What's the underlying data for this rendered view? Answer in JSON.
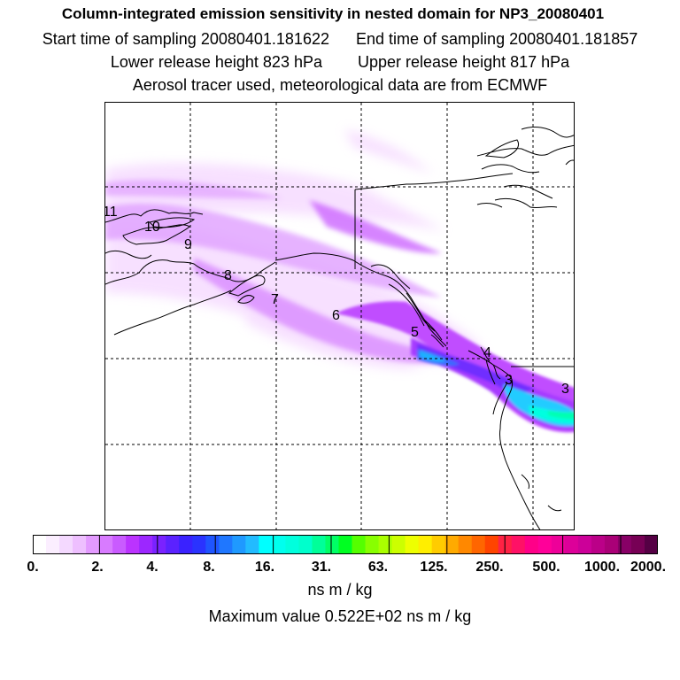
{
  "header": {
    "title": "Column-integrated emission sensitivity in nested domain for NP3_20080401",
    "start_label": "Start time of sampling 20080401.181622",
    "end_label": "End time of sampling 20080401.181857",
    "lower_label": "Lower release height  823 hPa",
    "upper_label": "Upper release height  817 hPa",
    "tracer_line": "Aerosol tracer used, meteorological data are from ECMWF"
  },
  "map": {
    "track_labels": [
      "11",
      "10",
      "9",
      "8",
      "7",
      "6",
      "5",
      "4",
      "3",
      "3"
    ],
    "colors": {
      "coast": "#000000",
      "grid": "#000000"
    }
  },
  "colorbar": {
    "tick_labels": [
      "0.",
      "2.",
      "4.",
      "8.",
      "16.",
      "31.",
      "63.",
      "125.",
      "250.",
      "500.",
      "1000.",
      "2000."
    ],
    "colors": [
      "#ffffff",
      "#fbeeff",
      "#f4d9ff",
      "#eebfff",
      "#e39aff",
      "#d87bff",
      "#c95bff",
      "#bb33ff",
      "#9c27ff",
      "#7a22ff",
      "#5b22ff",
      "#3a22ff",
      "#2a33ff",
      "#1f55ff",
      "#1f77ff",
      "#1f99ff",
      "#22bbff",
      "#00ffff",
      "#00ffee",
      "#00ffdd",
      "#00ffcc",
      "#00ff99",
      "#00ff66",
      "#00ff22",
      "#55ff00",
      "#88ff00",
      "#aaff00",
      "#ccff00",
      "#eeff00",
      "#ffee00",
      "#ffcc00",
      "#ffaa00",
      "#ff8800",
      "#ff6600",
      "#ff4400",
      "#ff2244",
      "#ff1166",
      "#ff0088",
      "#ff0099",
      "#ee0099",
      "#dd0099",
      "#cc0099",
      "#bb0088",
      "#aa0077",
      "#880066",
      "#770055",
      "#550044"
    ],
    "unit": "ns m / kg"
  },
  "footer": {
    "max_value": "Maximum value  0.522E+02 ns m / kg"
  }
}
